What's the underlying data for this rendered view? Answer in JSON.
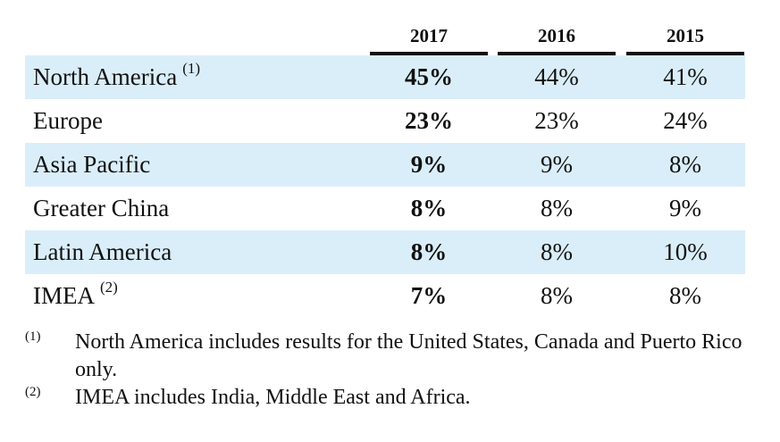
{
  "table": {
    "columns": [
      "2017",
      "2016",
      "2015"
    ],
    "rows": [
      {
        "region": "North America",
        "footnote": "(1)",
        "values": [
          "45%",
          "44%",
          "41%"
        ]
      },
      {
        "region": "Europe",
        "footnote": "",
        "values": [
          "23%",
          "23%",
          "24%"
        ]
      },
      {
        "region": "Asia Pacific",
        "footnote": "",
        "values": [
          "9%",
          "9%",
          "8%"
        ]
      },
      {
        "region": "Greater China",
        "footnote": "",
        "values": [
          "8%",
          "8%",
          "9%"
        ]
      },
      {
        "region": "Latin America",
        "footnote": "",
        "values": [
          "8%",
          "8%",
          "10%"
        ]
      },
      {
        "region": "IMEA",
        "footnote": "(2)",
        "values": [
          "7%",
          "8%",
          "8%"
        ]
      }
    ]
  },
  "footnotes": [
    {
      "marker": "(1)",
      "text": "North America includes results for the United States, Canada and Puerto Rico only."
    },
    {
      "marker": "(2)",
      "text": "IMEA includes India, Middle East and Africa."
    }
  ],
  "colors": {
    "row_shade": "#daeef9",
    "text": "#111111"
  }
}
